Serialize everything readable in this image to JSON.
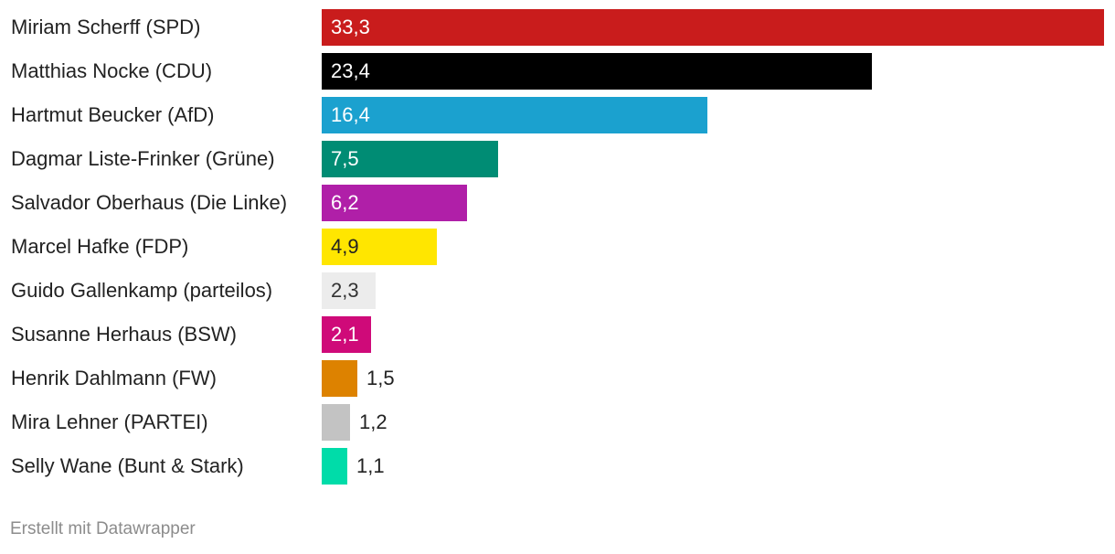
{
  "chart_data": {
    "type": "bar",
    "orientation": "horizontal",
    "categories": [
      "Miriam Scherff (SPD)",
      "Matthias Nocke (CDU)",
      "Hartmut Beucker (AfD)",
      "Dagmar Liste-Frinker (Grüne)",
      "Salvador Oberhaus (Die Linke)",
      "Marcel Hafke (FDP)",
      "Guido Gallenkamp (parteilos)",
      "Susanne Herhaus (BSW)",
      "Henrik Dahlmann (FW)",
      "Mira Lehner (PARTEI)",
      "Selly Wane (Bunt & Stark)"
    ],
    "values": [
      33.3,
      23.4,
      16.4,
      7.5,
      6.2,
      4.9,
      2.3,
      2.1,
      1.5,
      1.2,
      1.1
    ],
    "value_labels": [
      "33,3",
      "23,4",
      "16,4",
      "7,5",
      "6,2",
      "4,9",
      "2,3",
      "2,1",
      "1,5",
      "1,2",
      "1,1"
    ],
    "colors": [
      "#c91c1c",
      "#000000",
      "#1ba1cf",
      "#008c74",
      "#b01fa8",
      "#ffe600",
      "#ececec",
      "#cf0a79",
      "#dd8200",
      "#c3c3c3",
      "#00dca9"
    ],
    "label_colors": [
      "#ffffff",
      "#ffffff",
      "#ffffff",
      "#ffffff",
      "#ffffff",
      "#222222",
      "#333333",
      "#ffffff",
      "#222222",
      "#222222",
      "#222222"
    ],
    "xlim": [
      0,
      33.3
    ],
    "grid": false,
    "title": "",
    "xlabel": "",
    "ylabel": ""
  },
  "footer": {
    "credit": "Erstellt mit Datawrapper"
  }
}
